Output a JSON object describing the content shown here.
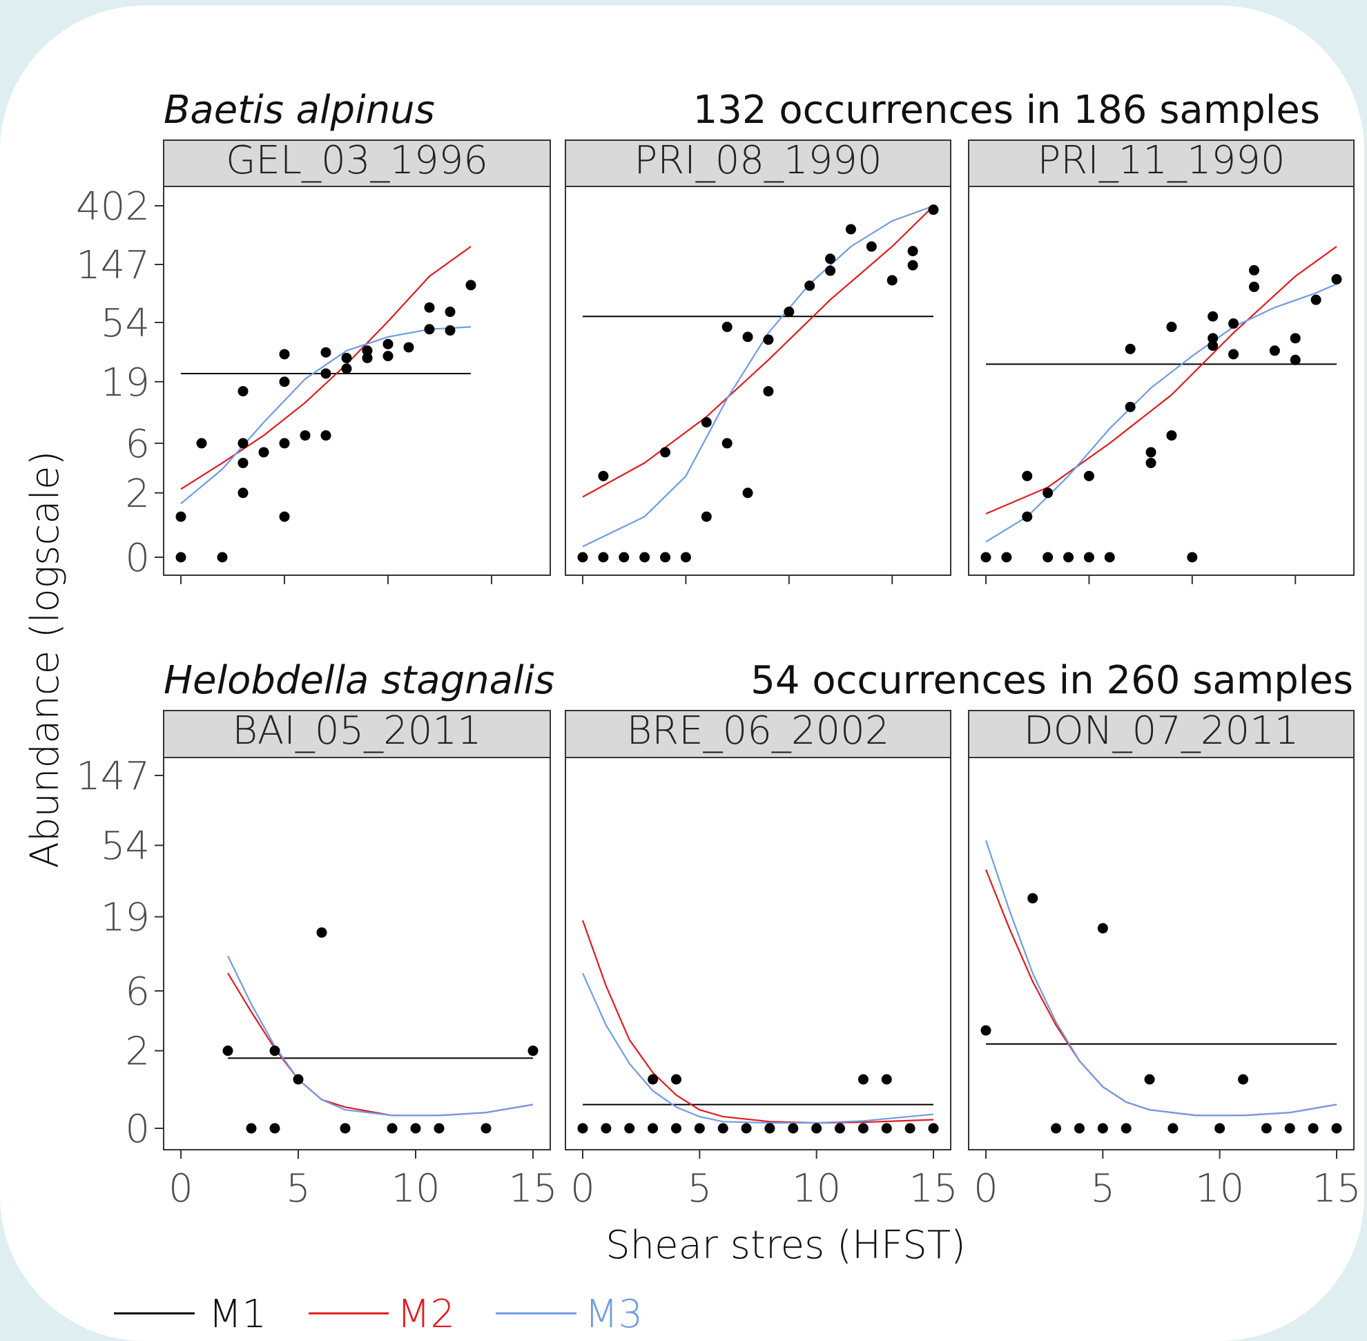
{
  "chart_data": {
    "type": "scatter",
    "ylabel": "Abundance (logscale)",
    "xlabel": "Shear stres (HFST)",
    "xlim": [
      0,
      15
    ],
    "x_ticks": [
      0,
      5,
      10,
      15
    ],
    "x_tick_labels": [
      "0",
      "5",
      "10",
      "15"
    ],
    "y_scale": "log(y+1)",
    "legend": {
      "placement": "bottom-left",
      "items": [
        {
          "label": "M1",
          "color": "#000000"
        },
        {
          "label": "M2",
          "color": "#e41a1c"
        },
        {
          "label": "M3",
          "color": "#6f9be6"
        }
      ]
    },
    "groups": [
      {
        "species": "Baetis alpinus",
        "summary": "132 occurrences in 186 samples",
        "y_ticks": [
          0,
          2,
          6,
          19,
          54,
          147,
          402
        ],
        "panels": [
          {
            "title": "GEL_03_1996",
            "points": [
              [
                0,
                0
              ],
              [
                0,
                1
              ],
              [
                1,
                6
              ],
              [
                2,
                0
              ],
              [
                3,
                2
              ],
              [
                3,
                4
              ],
              [
                3,
                6
              ],
              [
                3,
                16
              ],
              [
                4,
                5
              ],
              [
                5,
                1
              ],
              [
                5,
                6
              ],
              [
                5,
                19
              ],
              [
                5,
                31
              ],
              [
                6,
                7
              ],
              [
                7,
                7
              ],
              [
                7,
                22
              ],
              [
                7,
                32
              ],
              [
                8,
                24
              ],
              [
                8,
                29
              ],
              [
                9,
                29
              ],
              [
                9,
                33
              ],
              [
                10,
                30
              ],
              [
                10,
                37
              ],
              [
                11,
                35
              ],
              [
                12,
                48
              ],
              [
                12,
                70
              ],
              [
                13,
                47
              ],
              [
                13,
                65
              ],
              [
                14,
                103
              ]
            ],
            "M1": 22,
            "M2": [
              [
                0,
                2.2
              ],
              [
                2,
                4
              ],
              [
                4,
                7
              ],
              [
                6,
                13
              ],
              [
                8,
                26
              ],
              [
                10,
                55
              ],
              [
                12,
                120
              ],
              [
                14,
                200
              ]
            ],
            "M3": [
              [
                0,
                1.5
              ],
              [
                2,
                3.5
              ],
              [
                4,
                9
              ],
              [
                6,
                20
              ],
              [
                8,
                33
              ],
              [
                10,
                42
              ],
              [
                12,
                48
              ],
              [
                14,
                50
              ]
            ]
          },
          {
            "title": "PRI_08_1990",
            "points": [
              [
                0,
                0
              ],
              [
                1,
                0
              ],
              [
                1,
                3
              ],
              [
                2,
                0
              ],
              [
                3,
                0
              ],
              [
                4,
                0
              ],
              [
                4,
                5
              ],
              [
                5,
                0
              ],
              [
                6,
                1
              ],
              [
                6,
                9
              ],
              [
                7,
                6
              ],
              [
                7,
                50
              ],
              [
                8,
                2
              ],
              [
                8,
                42
              ],
              [
                9,
                16
              ],
              [
                9,
                40
              ],
              [
                10,
                65
              ],
              [
                11,
                102
              ],
              [
                12,
                132
              ],
              [
                12,
                162
              ],
              [
                13,
                269
              ],
              [
                14,
                200
              ],
              [
                15,
                112
              ],
              [
                16,
                145
              ],
              [
                16,
                185
              ],
              [
                17,
                376
              ]
            ],
            "M1": 60,
            "M2": [
              [
                0,
                1.8
              ],
              [
                3,
                4
              ],
              [
                6,
                10
              ],
              [
                9,
                28
              ],
              [
                12,
                80
              ],
              [
                15,
                200
              ],
              [
                17,
                400
              ]
            ],
            "M3": [
              [
                0,
                0.2
              ],
              [
                3,
                1
              ],
              [
                5,
                3
              ],
              [
                7,
                14
              ],
              [
                9,
                45
              ],
              [
                11,
                105
              ],
              [
                13,
                200
              ],
              [
                15,
                310
              ],
              [
                17,
                400
              ]
            ]
          },
          {
            "title": "PRI_11_1990",
            "points": [
              [
                0,
                0
              ],
              [
                1,
                0
              ],
              [
                2,
                1
              ],
              [
                2,
                3
              ],
              [
                3,
                0
              ],
              [
                3,
                2
              ],
              [
                4,
                0
              ],
              [
                5,
                0
              ],
              [
                5,
                3
              ],
              [
                6,
                0
              ],
              [
                7,
                12
              ],
              [
                7,
                34
              ],
              [
                8,
                4
              ],
              [
                8,
                5
              ],
              [
                9,
                7
              ],
              [
                9,
                50
              ],
              [
                10,
                0
              ],
              [
                11,
                36
              ],
              [
                11,
                41
              ],
              [
                11,
                60
              ],
              [
                12,
                53
              ],
              [
                12,
                31
              ],
              [
                13,
                100
              ],
              [
                13,
                133
              ],
              [
                14,
                33
              ],
              [
                15,
                28
              ],
              [
                15,
                41
              ],
              [
                16,
                80
              ],
              [
                17,
                114
              ]
            ],
            "M1": 26,
            "M2": [
              [
                0,
                1.1
              ],
              [
                3,
                2.3
              ],
              [
                6,
                6
              ],
              [
                9,
                15
              ],
              [
                12,
                45
              ],
              [
                15,
                120
              ],
              [
                17,
                200
              ]
            ],
            "M3": [
              [
                0,
                0.3
              ],
              [
                2,
                1
              ],
              [
                4,
                3
              ],
              [
                6,
                8
              ],
              [
                8,
                17
              ],
              [
                10,
                30
              ],
              [
                12,
                50
              ],
              [
                14,
                70
              ],
              [
                16,
                90
              ],
              [
                17,
                105
              ]
            ]
          }
        ]
      },
      {
        "species": "Helobdella stagnalis",
        "summary": "54 occurrences in 260 samples",
        "y_ticks": [
          0,
          2,
          6,
          19,
          54,
          147
        ],
        "panels": [
          {
            "title": "BAI_05_2011",
            "points": [
              [
                2,
                2
              ],
              [
                3,
                0
              ],
              [
                4,
                0
              ],
              [
                4,
                2
              ],
              [
                5,
                1
              ],
              [
                6,
                15
              ],
              [
                7,
                0
              ],
              [
                9,
                0
              ],
              [
                10,
                0
              ],
              [
                11,
                0
              ],
              [
                13,
                0
              ],
              [
                15,
                2
              ]
            ],
            "M1": 1.7,
            "M2": [
              [
                2,
                8
              ],
              [
                3,
                4.2
              ],
              [
                4,
                2.1
              ],
              [
                5,
                1
              ],
              [
                6,
                0.5
              ],
              [
                7,
                0.35
              ],
              [
                9,
                0.2
              ],
              [
                11,
                0.2
              ],
              [
                13,
                0.25
              ],
              [
                15,
                0.4
              ]
            ],
            "M3": [
              [
                2,
                10.5
              ],
              [
                3,
                4.8
              ],
              [
                4,
                2.2
              ],
              [
                5,
                1
              ],
              [
                6,
                0.5
              ],
              [
                7,
                0.3
              ],
              [
                9,
                0.2
              ],
              [
                11,
                0.2
              ],
              [
                13,
                0.25
              ],
              [
                15,
                0.4
              ]
            ]
          },
          {
            "title": "BRE_06_2002",
            "points": [
              [
                0,
                0
              ],
              [
                1,
                0
              ],
              [
                2,
                0
              ],
              [
                3,
                0
              ],
              [
                3,
                1
              ],
              [
                4,
                0
              ],
              [
                4,
                1
              ],
              [
                5,
                0
              ],
              [
                6,
                0
              ],
              [
                7,
                0
              ],
              [
                8,
                0
              ],
              [
                9,
                0
              ],
              [
                10,
                0
              ],
              [
                11,
                0
              ],
              [
                12,
                0
              ],
              [
                12,
                1
              ],
              [
                13,
                0
              ],
              [
                13,
                1
              ],
              [
                14,
                0
              ],
              [
                15,
                0
              ]
            ],
            "M1": 0.4,
            "M2": [
              [
                0,
                18
              ],
              [
                1,
                6.5
              ],
              [
                2,
                2.5
              ],
              [
                3,
                1.2
              ],
              [
                4,
                0.6
              ],
              [
                5,
                0.3
              ],
              [
                6,
                0.18
              ],
              [
                8,
                0.1
              ],
              [
                10,
                0.08
              ],
              [
                12,
                0.09
              ],
              [
                15,
                0.13
              ]
            ],
            "M3": [
              [
                0,
                8
              ],
              [
                1,
                3.3
              ],
              [
                2,
                1.5
              ],
              [
                3,
                0.7
              ],
              [
                4,
                0.35
              ],
              [
                5,
                0.18
              ],
              [
                6,
                0.1
              ],
              [
                8,
                0.08
              ],
              [
                10,
                0.08
              ],
              [
                12,
                0.11
              ],
              [
                15,
                0.22
              ]
            ]
          },
          {
            "title": "DON_07_2011",
            "points": [
              [
                0,
                3
              ],
              [
                2,
                25
              ],
              [
                3,
                0
              ],
              [
                4,
                0
              ],
              [
                5,
                0
              ],
              [
                5,
                16
              ],
              [
                6,
                0
              ],
              [
                7,
                1
              ],
              [
                8,
                0
              ],
              [
                10,
                0
              ],
              [
                11,
                1
              ],
              [
                12,
                0
              ],
              [
                13,
                0
              ],
              [
                14,
                0
              ],
              [
                15,
                0
              ]
            ],
            "M1": 2.3,
            "M2": [
              [
                0,
                38
              ],
              [
                1,
                16
              ],
              [
                2,
                7
              ],
              [
                3,
                3.3
              ],
              [
                4,
                1.6
              ],
              [
                5,
                0.8
              ],
              [
                6,
                0.45
              ],
              [
                7,
                0.3
              ],
              [
                9,
                0.2
              ],
              [
                11,
                0.2
              ],
              [
                13,
                0.25
              ],
              [
                15,
                0.4
              ]
            ],
            "M3": [
              [
                0,
                58
              ],
              [
                1,
                21
              ],
              [
                2,
                8
              ],
              [
                3,
                3.5
              ],
              [
                4,
                1.6
              ],
              [
                5,
                0.8
              ],
              [
                6,
                0.45
              ],
              [
                7,
                0.3
              ],
              [
                9,
                0.2
              ],
              [
                11,
                0.2
              ],
              [
                13,
                0.25
              ],
              [
                15,
                0.4
              ]
            ]
          }
        ]
      }
    ]
  }
}
